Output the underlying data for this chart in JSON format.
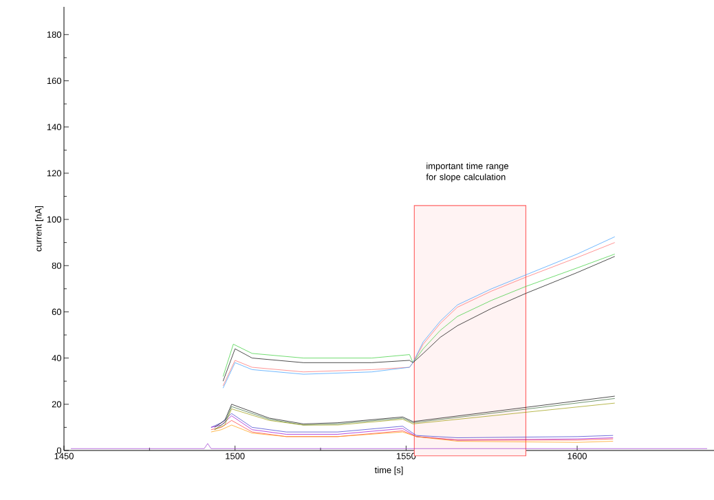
{
  "chart_data": {
    "type": "line",
    "xlabel": "time [s]",
    "ylabel": "current [nA]",
    "xlim": [
      1450,
      1640
    ],
    "ylim": [
      0,
      192
    ],
    "xticks": [
      1450,
      1500,
      1550,
      1600
    ],
    "yticks": [
      0,
      20,
      40,
      60,
      80,
      100,
      120,
      140,
      160,
      180
    ],
    "grid": false,
    "legend": false,
    "marker": "none",
    "line_style": "solid",
    "bands": [
      {
        "axis": "x",
        "from": 1552.4,
        "to": 1585,
        "label": "important time range for slope calculation",
        "color": "#ff6666"
      }
    ],
    "series": [
      {
        "color": "#9933cc",
        "x": [
          1452,
          1491,
          1492,
          1493,
          1611,
          1612,
          1638
        ],
        "values": [
          0.8,
          0.8,
          3,
          0.8,
          0.8,
          0.8,
          0.8
        ]
      },
      {
        "color": "#3333cc",
        "x": [
          1493,
          1496,
          1499,
          1505,
          1515,
          1530,
          1549,
          1553,
          1565,
          1600,
          1610.5
        ],
        "values": [
          10,
          12,
          16,
          10,
          8,
          8,
          10.5,
          6.5,
          5.5,
          6,
          6.5
        ]
      },
      {
        "color": "#9900cc",
        "x": [
          1493,
          1496,
          1499,
          1505,
          1515,
          1530,
          1549,
          1553,
          1565,
          1600,
          1610.5
        ],
        "values": [
          10,
          11,
          15,
          9,
          7,
          7,
          9.5,
          6,
          4.5,
          5,
          5.5
        ]
      },
      {
        "color": "#ff3333",
        "x": [
          1493,
          1496,
          1499,
          1505,
          1515,
          1530,
          1549,
          1553,
          1565,
          1600,
          1610.5
        ],
        "values": [
          9,
          10,
          13,
          8,
          6,
          6,
          8.5,
          6,
          4.5,
          4.5,
          5
        ]
      },
      {
        "color": "#ff9900",
        "x": [
          1493,
          1496,
          1499,
          1505,
          1515,
          1530,
          1549,
          1553,
          1565,
          1600,
          1610.5
        ],
        "values": [
          8,
          9,
          11,
          7.5,
          6,
          6,
          8,
          6,
          4,
          3.5,
          4
        ]
      },
      {
        "color": "#000000",
        "x": [
          1494,
          1497,
          1499,
          1510,
          1520,
          1530,
          1549,
          1552,
          1611
        ],
        "values": [
          10,
          13,
          20,
          14,
          11.5,
          12,
          14.5,
          12.5,
          23.5
        ]
      },
      {
        "color": "#336633",
        "x": [
          1494,
          1497,
          1499,
          1510,
          1520,
          1530,
          1549,
          1552,
          1611
        ],
        "values": [
          9,
          12,
          19,
          13.5,
          11,
          11.5,
          14,
          12,
          22.5
        ]
      },
      {
        "color": "#999900",
        "x": [
          1494,
          1497,
          1499,
          1510,
          1520,
          1530,
          1549,
          1552,
          1611
        ],
        "values": [
          9,
          11,
          18,
          13,
          11,
          11,
          13.5,
          11.5,
          20.5
        ]
      },
      {
        "color": "#33cc33",
        "x": [
          1496.5,
          1499.5,
          1505,
          1520,
          1540,
          1551,
          1552,
          1555,
          1560,
          1565,
          1575,
          1585,
          1600,
          1611
        ],
        "values": [
          32,
          46,
          42,
          40,
          40,
          41.5,
          38,
          44,
          52,
          58,
          65,
          71,
          79,
          85
        ]
      },
      {
        "color": "#000000",
        "x": [
          1496.5,
          1500,
          1505,
          1520,
          1540,
          1551,
          1552,
          1555,
          1560,
          1565,
          1575,
          1585,
          1600,
          1611
        ],
        "values": [
          30,
          44,
          40,
          38,
          38,
          39,
          38,
          42,
          49,
          54,
          61.5,
          68,
          77,
          84
        ]
      },
      {
        "color": "#ff6666",
        "x": [
          1496.5,
          1500,
          1505,
          1520,
          1540,
          1551,
          1552,
          1555,
          1560,
          1565,
          1575,
          1585,
          1600,
          1611
        ],
        "values": [
          28,
          39,
          36,
          34,
          35,
          36,
          38,
          46,
          55,
          62,
          69,
          75,
          83.5,
          90
        ]
      },
      {
        "color": "#3399ff",
        "x": [
          1496.5,
          1500,
          1505,
          1520,
          1540,
          1551,
          1552,
          1555,
          1560,
          1565,
          1575,
          1585,
          1600,
          1611
        ],
        "values": [
          27,
          38,
          35,
          33,
          34,
          36,
          38,
          47,
          56,
          63,
          70,
          76,
          85,
          92.5
        ]
      }
    ]
  }
}
